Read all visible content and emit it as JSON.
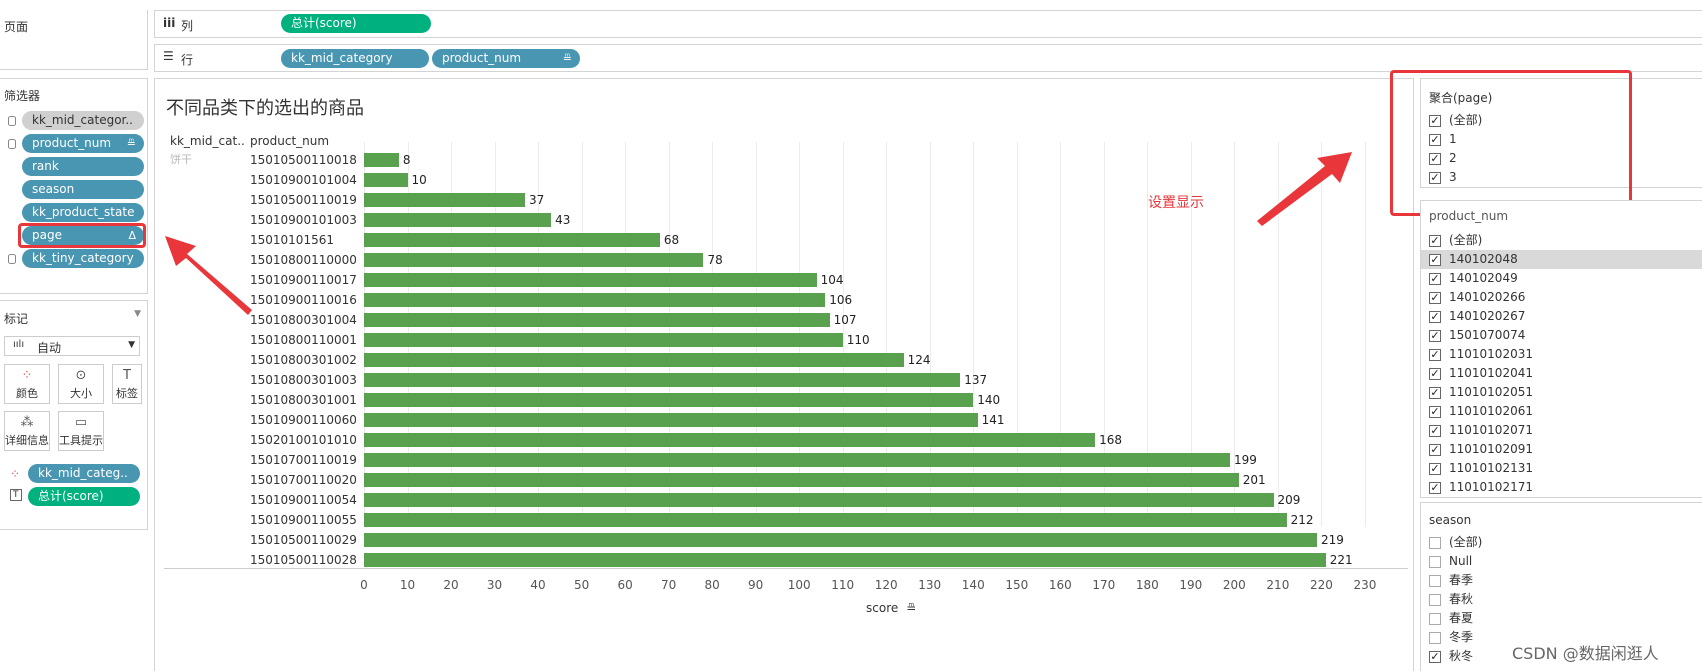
{
  "shelves": {
    "pages_label": "页面",
    "columns_label": "列",
    "rows_label": "行",
    "column_pill": "总计(score)",
    "row_pills": [
      "kk_mid_category",
      "product_num"
    ]
  },
  "filters": {
    "title": "筛选器",
    "items": [
      {
        "label": "kk_mid_categor..",
        "style": "grey",
        "icon": "database-icon"
      },
      {
        "label": "product_num",
        "style": "blue",
        "icon": "database-icon",
        "suffix": "sort-icon"
      },
      {
        "label": "rank",
        "style": "blue"
      },
      {
        "label": "season",
        "style": "blue"
      },
      {
        "label": "kk_product_state",
        "style": "blue"
      },
      {
        "label": "page",
        "style": "blue",
        "suffix": "delta-icon"
      },
      {
        "label": "kk_tiny_category",
        "style": "blue",
        "icon": "database-icon"
      }
    ]
  },
  "marks": {
    "title": "标记",
    "type": "自动",
    "cards": [
      "颜色",
      "大小",
      "标签",
      "详细信息",
      "工具提示"
    ],
    "pills": [
      {
        "label": "kk_mid_categ..",
        "icon": "color-icon"
      },
      {
        "label": "总计(score)",
        "icon": "label-icon"
      }
    ]
  },
  "sheet": {
    "title": "不同品类下的选出的商品",
    "col_header_1": "kk_mid_cat..",
    "col_header_2": "product_num",
    "category": "饼干",
    "annotation": "设置显示",
    "x_axis_label": "score"
  },
  "chart_data": {
    "type": "bar",
    "title": "不同品类下的选出的商品",
    "xlabel": "score",
    "ylabel": "product_num",
    "xlim": [
      0,
      230
    ],
    "x_ticks": [
      0,
      10,
      20,
      30,
      40,
      50,
      60,
      70,
      80,
      90,
      100,
      110,
      120,
      130,
      140,
      150,
      160,
      170,
      180,
      190,
      200,
      210,
      220,
      230
    ],
    "categories": [
      "15010500110018",
      "15010900101004",
      "15010500110019",
      "15010900101003",
      "15010101561",
      "15010800110000",
      "15010900110017",
      "15010900110016",
      "15010800301004",
      "15010800110001",
      "15010800301002",
      "15010800301003",
      "15010800301001",
      "15010900110060",
      "15020100101010",
      "15010700110019",
      "15010700110020",
      "15010900110054",
      "15010900110055",
      "15010500110029",
      "15010500110028"
    ],
    "values": [
      8,
      10,
      37,
      43,
      68,
      78,
      104,
      106,
      107,
      110,
      124,
      137,
      140,
      141,
      168,
      199,
      201,
      209,
      212,
      219,
      221
    ],
    "color": "#59a14f"
  },
  "page_filter": {
    "title": "聚合(page)",
    "items": [
      {
        "label": "(全部)",
        "checked": true
      },
      {
        "label": "1",
        "checked": true
      },
      {
        "label": "2",
        "checked": true
      },
      {
        "label": "3",
        "checked": true
      }
    ]
  },
  "product_filter": {
    "title": "product_num",
    "items": [
      {
        "label": "(全部)",
        "checked": true
      },
      {
        "label": "140102048",
        "checked": true
      },
      {
        "label": "140102049",
        "checked": true
      },
      {
        "label": "1401020266",
        "checked": true
      },
      {
        "label": "1401020267",
        "checked": true
      },
      {
        "label": "1501070074",
        "checked": true
      },
      {
        "label": "11010102031",
        "checked": true
      },
      {
        "label": "11010102041",
        "checked": true
      },
      {
        "label": "11010102051",
        "checked": true
      },
      {
        "label": "11010102061",
        "checked": true
      },
      {
        "label": "11010102071",
        "checked": true
      },
      {
        "label": "11010102091",
        "checked": true
      },
      {
        "label": "11010102131",
        "checked": true
      },
      {
        "label": "11010102171",
        "checked": true
      }
    ]
  },
  "season_filter": {
    "title": "season",
    "items": [
      {
        "label": "(全部)",
        "checked": false
      },
      {
        "label": "Null",
        "checked": false
      },
      {
        "label": "春季",
        "checked": false
      },
      {
        "label": "春秋",
        "checked": false
      },
      {
        "label": "春夏",
        "checked": false
      },
      {
        "label": "冬季",
        "checked": false
      },
      {
        "label": "秋冬",
        "checked": true
      }
    ]
  },
  "watermark": "CSDN @数据闲逛人"
}
